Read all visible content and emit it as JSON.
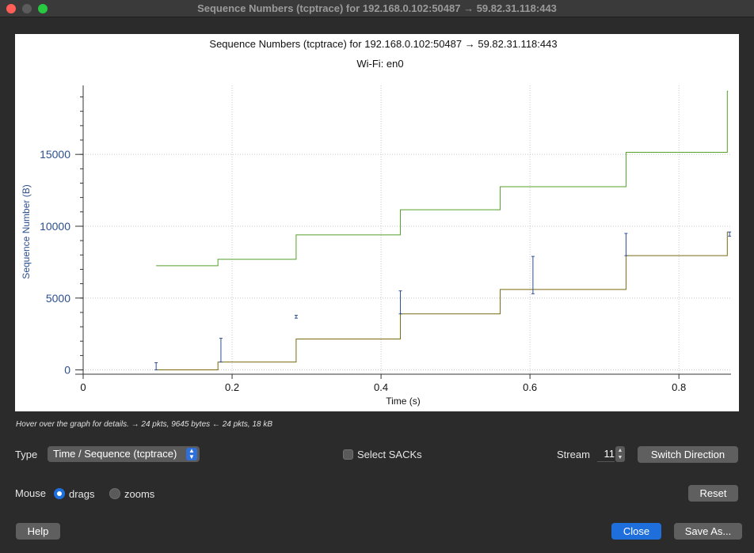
{
  "window": {
    "title": "Sequence Numbers (tcptrace) for 192.168.0.102:50487 → 59.82.31.118:443"
  },
  "chart_data": {
    "type": "line",
    "title": "Sequence Numbers (tcptrace) for 192.168.0.102:50487 → 59.82.31.118:443",
    "subtitle": "Wi-Fi: en0",
    "xlabel": "Time (s)",
    "ylabel": "Sequence Number (B)",
    "xlim": [
      0,
      0.87
    ],
    "ylim": [
      -300,
      19800
    ],
    "x_ticks": [
      "0",
      "0.2",
      "0.4",
      "0.6",
      "0.8"
    ],
    "y_ticks": [
      "0",
      "5000",
      "10000",
      "15000"
    ],
    "grid": true,
    "series": [
      {
        "role": "receive-window",
        "color": "#55a02a",
        "steps": [
          [
            0.098,
            7250
          ],
          [
            0.181,
            7700
          ],
          [
            0.286,
            9400
          ],
          [
            0.426,
            11150
          ],
          [
            0.56,
            12750
          ],
          [
            0.729,
            15150
          ],
          [
            0.865,
            19400
          ]
        ],
        "x_end": 0.865
      },
      {
        "role": "ack",
        "color": "#7a6a12",
        "steps": [
          [
            0.098,
            0
          ],
          [
            0.181,
            550
          ],
          [
            0.286,
            2150
          ],
          [
            0.426,
            3900
          ],
          [
            0.56,
            5600
          ],
          [
            0.729,
            7950
          ],
          [
            0.865,
            9600
          ]
        ],
        "x_end": 0.865
      },
      {
        "role": "segments",
        "color": "#2c4f90",
        "points": [
          [
            0.098,
            0,
            500
          ],
          [
            0.185,
            550,
            2200
          ],
          [
            0.286,
            3600,
            3800
          ],
          [
            0.426,
            3900,
            5500
          ],
          [
            0.604,
            5300,
            7900
          ],
          [
            0.729,
            7950,
            9500
          ],
          [
            0.868,
            9300,
            9600
          ]
        ]
      }
    ]
  },
  "status": {
    "hint": "Hover over the graph for details. → 24 pkts, 9645 bytes ← 24 pkts, 18 kB"
  },
  "controls": {
    "type_label": "Type",
    "type_value": "Time / Sequence (tcptrace)",
    "select_sacks_label": "Select SACKs",
    "stream_label": "Stream",
    "stream_value": "11",
    "switch_direction": "Switch Direction",
    "mouse_label": "Mouse",
    "drags_label": "drags",
    "zooms_label": "zooms",
    "reset": "Reset",
    "help": "Help",
    "close": "Close",
    "save_as": "Save As..."
  },
  "colors": {
    "axis_text": "#2c4f90",
    "primary_button": "#1e6fdc"
  }
}
